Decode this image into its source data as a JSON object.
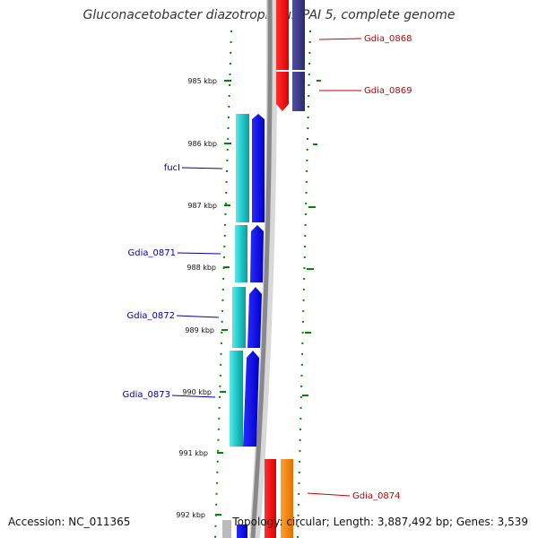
{
  "title": "Gluconacetobacter diazotrophicus PAI 5, complete genome",
  "accession": "Accession: NC_011365",
  "summary": "Topology: circular; Length: 3,887,492 bp; Genes: 3,539",
  "ruler": {
    "labels": [
      "985 kbp",
      "986 kbp",
      "987 kbp",
      "988 kbp",
      "989 kbp",
      "990 kbp",
      "991 kbp",
      "992 kbp"
    ]
  },
  "genes_left": [
    {
      "label": "fucI",
      "color": "#0000aa"
    },
    {
      "label": "Gdia_0871",
      "color": "#0000aa"
    },
    {
      "label": "Gdia_0872",
      "color": "#0000aa"
    },
    {
      "label": "Gdia_0873",
      "color": "#0000aa"
    }
  ],
  "genes_right": [
    {
      "label": "Gdia_0868",
      "color": "#cc0000"
    },
    {
      "label": "Gdia_0869",
      "color": "#cc0000"
    },
    {
      "label": "Gdia_0874",
      "color": "#cc0000"
    }
  ],
  "colors": {
    "cog_cyan": "#20c8c8",
    "cds_blue": "#0000ee",
    "cds_red": "#ff0000",
    "cog_navy": "#3c3c8c",
    "cds_orange": "#ff8c00",
    "backbone": "#888888",
    "tick": "#008800"
  }
}
